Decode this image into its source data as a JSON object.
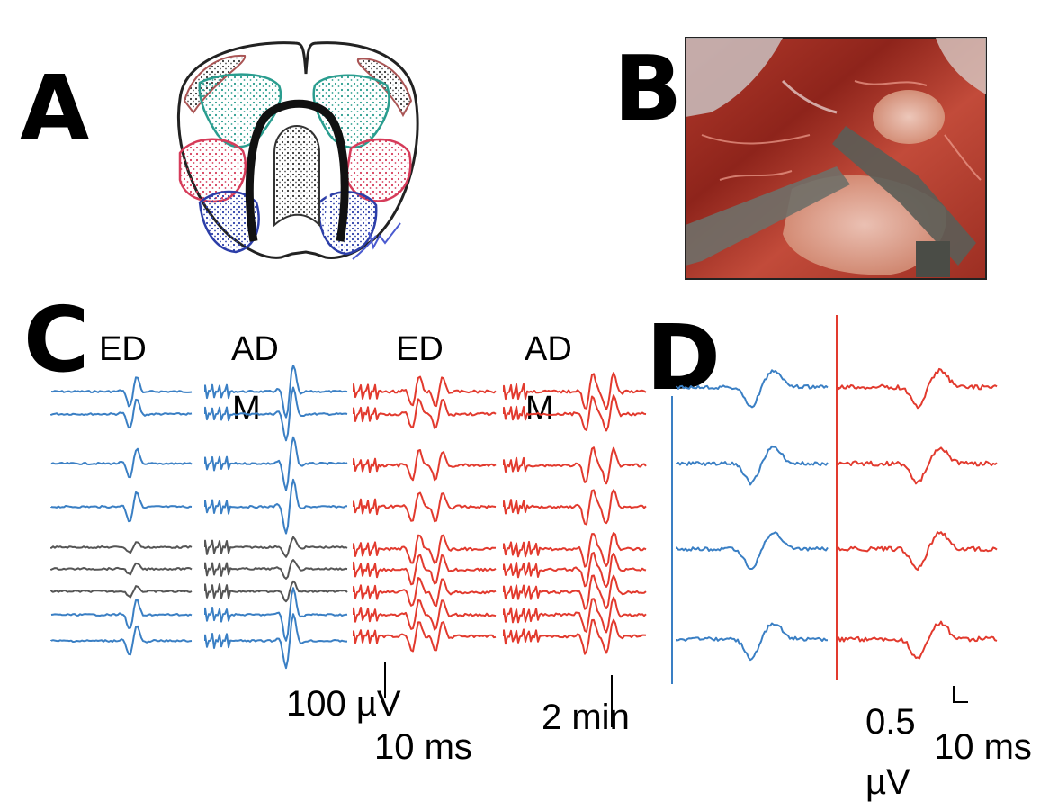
{
  "panels": {
    "A": {
      "label": "A"
    },
    "B": {
      "label": "B"
    },
    "C": {
      "label": "C",
      "column_labels": [
        "ED",
        "AD",
        "ED",
        "AD"
      ],
      "sub_labels": [
        "M",
        "M"
      ],
      "scale_amplitude": "100 µV",
      "scale_time": "10 ms",
      "scale_interval": "2 min"
    },
    "D": {
      "label": "D",
      "scale_amp_value": "0.5",
      "scale_amp_unit": "µV",
      "scale_time": "10 ms"
    }
  },
  "colors": {
    "blue": "#3a7fc4",
    "red": "#e23a2e",
    "gray": "#555555",
    "green": "#2a9d8f",
    "magenta": "#d63c5a",
    "navy": "#2c3ea8"
  },
  "icons": {
    "A": "brain-section-sketch",
    "B": "surgical-photo"
  }
}
